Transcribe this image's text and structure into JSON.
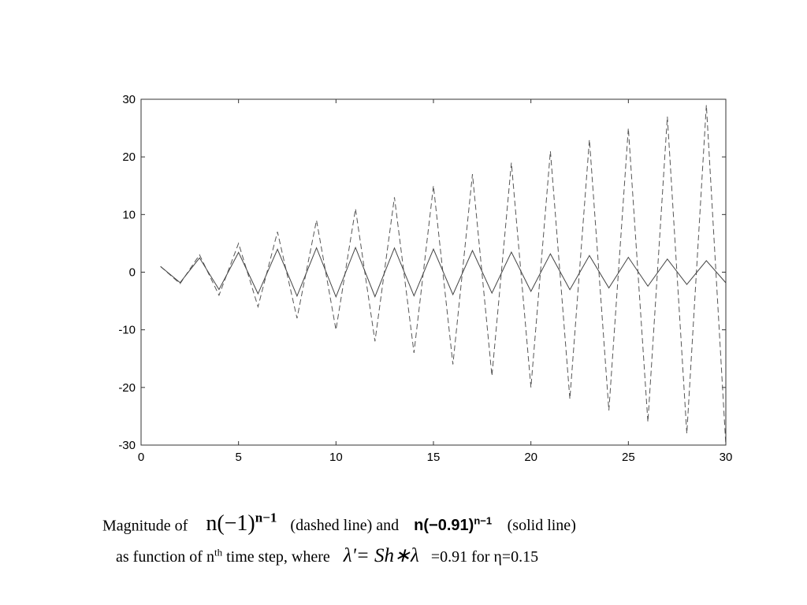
{
  "chart_data": {
    "type": "line",
    "title": "",
    "xlabel": "",
    "ylabel": "",
    "xlim": [
      0,
      30
    ],
    "ylim": [
      -30,
      30
    ],
    "xticks": [
      0,
      5,
      10,
      15,
      20,
      25,
      30
    ],
    "yticks": [
      30,
      20,
      10,
      0,
      -10,
      -20,
      -30
    ],
    "grid": false,
    "x": [
      1,
      2,
      3,
      4,
      5,
      6,
      7,
      8,
      9,
      10,
      11,
      12,
      13,
      14,
      15,
      16,
      17,
      18,
      19,
      20,
      21,
      22,
      23,
      24,
      25,
      26,
      27,
      28,
      29,
      30
    ],
    "series": [
      {
        "name": "n(-1)^(n-1)",
        "style": "dashed",
        "color": "#555555",
        "values": [
          1,
          -2,
          3,
          -4,
          5,
          -6,
          7,
          -8,
          9,
          -10,
          11,
          -12,
          13,
          -14,
          15,
          -16,
          17,
          -18,
          19,
          -20,
          21,
          -22,
          23,
          -24,
          25,
          -26,
          27,
          -28,
          29,
          -30
        ]
      },
      {
        "name": "n(-0.91)^(n-1)",
        "style": "solid",
        "color": "#444444",
        "values": [
          1.0,
          -1.82,
          2.48,
          -3.01,
          3.43,
          -3.75,
          3.98,
          -4.14,
          4.23,
          -4.28,
          4.28,
          -4.25,
          4.19,
          -4.11,
          4.01,
          -3.89,
          3.76,
          -3.63,
          3.48,
          -3.34,
          3.19,
          -3.04,
          2.88,
          -2.73,
          2.58,
          -2.43,
          2.28,
          -2.13,
          1.99,
          -1.85
        ]
      }
    ]
  },
  "caption": {
    "line1_prefix": "Magnitude of",
    "eq1_base": "n(−1)",
    "eq1_exp": "n−1",
    "line1_mid": "(dashed line)  and",
    "eq2_base": "n(−0.91)",
    "eq2_exp": "n−1",
    "line1_suffix": "(solid line)",
    "line2_prefix": "as function of n",
    "line2_sup": "th",
    "line2_mid": " time step, where",
    "eq3": "λ'= Sh∗λ",
    "line2_suffix": "=0.91 for η=0.15"
  }
}
